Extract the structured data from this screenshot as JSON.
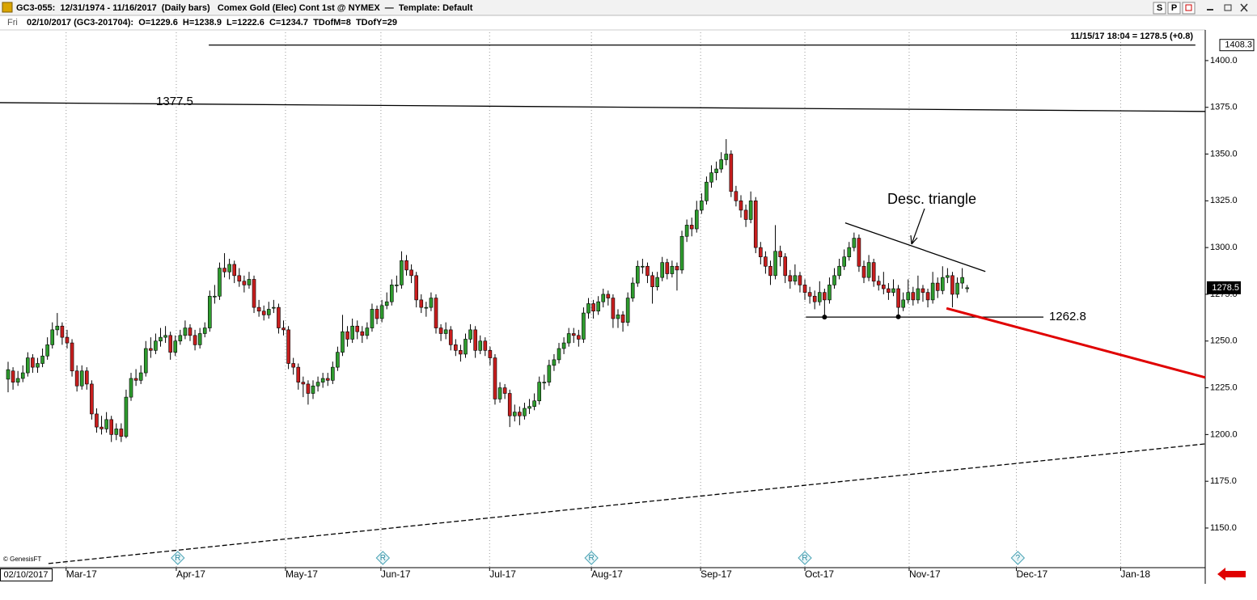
{
  "ui": {
    "header": "GC3-055:  12/31/1974 - 11/16/2017  (Daily bars)   Comex Gold (Elec) Cont 1st @ NYMEX  —  Template: Default",
    "day": "Fri",
    "info": "02/10/2017 (GC3-201704):  O=1229.6  H=1238.9  L=1222.6  C=1234.7  TDofM=8  TDofY=29",
    "last_quote": "11/15/17 18:04 = 1278.5 (+0.8)",
    "copyright": "© GenesisFT",
    "date_box": "02/10/2017",
    "buttons": [
      "S",
      "P"
    ]
  },
  "chart_data": {
    "type": "candlestick",
    "up_color": "#2e9b2e",
    "down_color": "#c81e1e",
    "grid": true,
    "xlim": [
      -1.645,
      243.4
    ],
    "ylim": [
      1128.8,
      1415.1
    ],
    "xticks": [
      {
        "value": 11.8,
        "label": "Mar-17"
      },
      {
        "value": 34.2,
        "label": "Apr-17"
      },
      {
        "value": 56.4,
        "label": "May-17"
      },
      {
        "value": 75.8,
        "label": "Jun-17"
      },
      {
        "value": 97.9,
        "label": "Jul-17"
      },
      {
        "value": 118.6,
        "label": "Aug-17"
      },
      {
        "value": 140.8,
        "label": "Sep-17"
      },
      {
        "value": 162,
        "label": "Oct-17"
      },
      {
        "value": 183.2,
        "label": "Nov-17"
      },
      {
        "value": 205,
        "label": "Dec-17"
      },
      {
        "value": 226.2,
        "label": "Jan-18"
      }
    ],
    "yticks": [
      {
        "value": 1150,
        "label": "1150.0"
      },
      {
        "value": 1175,
        "label": "1175.0"
      },
      {
        "value": 1200,
        "label": "1200.0"
      },
      {
        "value": 1225,
        "label": "1225.0"
      },
      {
        "value": 1250,
        "label": "1250.0"
      },
      {
        "value": 1275,
        "label": "1275.0"
      },
      {
        "value": 1300,
        "label": "1300.0"
      },
      {
        "value": 1325,
        "label": "1325.0"
      },
      {
        "value": 1350,
        "label": "1350.0"
      },
      {
        "value": 1375,
        "label": "1375.0"
      },
      {
        "value": 1400,
        "label": "1400.0"
      }
    ],
    "ohlc": [
      [
        1229.6,
        1238.9,
        1222.6,
        1234.7
      ],
      [
        1234,
        1236,
        1224,
        1228
      ],
      [
        1228,
        1234,
        1226,
        1230
      ],
      [
        1230,
        1237,
        1228,
        1233
      ],
      [
        1233,
        1244,
        1231,
        1241
      ],
      [
        1241,
        1243,
        1233,
        1236
      ],
      [
        1236,
        1241,
        1233,
        1238
      ],
      [
        1238,
        1246,
        1236,
        1242
      ],
      [
        1242,
        1252,
        1240,
        1248
      ],
      [
        1248,
        1260,
        1246,
        1256
      ],
      [
        1256,
        1265,
        1253,
        1258
      ],
      [
        1258,
        1260,
        1248,
        1252
      ],
      [
        1252,
        1256,
        1246,
        1249
      ],
      [
        1249,
        1251,
        1231,
        1234
      ],
      [
        1234,
        1237,
        1223,
        1226
      ],
      [
        1226,
        1237,
        1224,
        1234
      ],
      [
        1234,
        1236,
        1224,
        1227
      ],
      [
        1227,
        1229,
        1208,
        1211
      ],
      [
        1211,
        1214,
        1201,
        1204
      ],
      [
        1204,
        1210,
        1200,
        1203
      ],
      [
        1203,
        1212,
        1201,
        1208
      ],
      [
        1208,
        1210,
        1196,
        1200
      ],
      [
        1200,
        1206,
        1197,
        1203
      ],
      [
        1203,
        1206,
        1196,
        1199
      ],
      [
        1199,
        1224,
        1198,
        1220
      ],
      [
        1220,
        1233,
        1218,
        1230
      ],
      [
        1230,
        1235,
        1226,
        1229
      ],
      [
        1229,
        1237,
        1227,
        1233
      ],
      [
        1233,
        1250,
        1231,
        1246
      ],
      [
        1246,
        1252,
        1241,
        1245
      ],
      [
        1245,
        1254,
        1243,
        1250
      ],
      [
        1250,
        1257,
        1247,
        1252
      ],
      [
        1252,
        1258,
        1249,
        1253
      ],
      [
        1253,
        1255,
        1240,
        1244
      ],
      [
        1244,
        1253,
        1242,
        1250
      ],
      [
        1250,
        1256,
        1248,
        1253
      ],
      [
        1253,
        1261,
        1251,
        1257
      ],
      [
        1257,
        1259,
        1250,
        1253
      ],
      [
        1253,
        1256,
        1245,
        1248
      ],
      [
        1248,
        1257,
        1246,
        1254
      ],
      [
        1254,
        1260,
        1252,
        1257
      ],
      [
        1257,
        1277,
        1255,
        1274
      ],
      [
        1274,
        1280,
        1270,
        1274
      ],
      [
        1274,
        1292,
        1272,
        1289
      ],
      [
        1289,
        1297,
        1284,
        1287
      ],
      [
        1287,
        1294,
        1283,
        1291
      ],
      [
        1291,
        1293,
        1281,
        1285
      ],
      [
        1285,
        1289,
        1279,
        1282
      ],
      [
        1282,
        1285,
        1276,
        1280
      ],
      [
        1280,
        1287,
        1278,
        1283
      ],
      [
        1283,
        1285,
        1265,
        1268
      ],
      [
        1268,
        1272,
        1263,
        1266
      ],
      [
        1266,
        1269,
        1261,
        1264
      ],
      [
        1264,
        1271,
        1262,
        1267
      ],
      [
        1268,
        1272,
        1265,
        1268
      ],
      [
        1268,
        1270,
        1254,
        1257
      ],
      [
        1257,
        1261,
        1253,
        1256
      ],
      [
        1256,
        1258,
        1235,
        1238
      ],
      [
        1238,
        1241,
        1232,
        1236
      ],
      [
        1236,
        1238,
        1224,
        1228
      ],
      [
        1228,
        1231,
        1220,
        1227
      ],
      [
        1227,
        1229,
        1216,
        1222
      ],
      [
        1222,
        1229,
        1219,
        1226
      ],
      [
        1226,
        1231,
        1223,
        1228
      ],
      [
        1228,
        1233,
        1225,
        1230
      ],
      [
        1230,
        1233,
        1226,
        1229
      ],
      [
        1229,
        1239,
        1227,
        1236
      ],
      [
        1236,
        1247,
        1234,
        1244
      ],
      [
        1244,
        1264,
        1242,
        1255
      ],
      [
        1255,
        1258,
        1247,
        1251
      ],
      [
        1251,
        1262,
        1249,
        1258
      ],
      [
        1258,
        1261,
        1251,
        1255
      ],
      [
        1255,
        1258,
        1249,
        1253
      ],
      [
        1253,
        1260,
        1251,
        1257
      ],
      [
        1257,
        1270,
        1255,
        1267
      ],
      [
        1267,
        1269,
        1259,
        1262
      ],
      [
        1262,
        1272,
        1260,
        1269
      ],
      [
        1269,
        1276,
        1267,
        1271
      ],
      [
        1271,
        1283,
        1269,
        1280
      ],
      [
        1280,
        1285,
        1276,
        1280
      ],
      [
        1280,
        1298,
        1278,
        1293
      ],
      [
        1293,
        1296,
        1285,
        1288
      ],
      [
        1288,
        1291,
        1281,
        1285
      ],
      [
        1285,
        1287,
        1268,
        1272
      ],
      [
        1272,
        1275,
        1265,
        1268
      ],
      [
        1268,
        1271,
        1263,
        1268
      ],
      [
        1268,
        1276,
        1266,
        1273
      ],
      [
        1273,
        1275,
        1254,
        1257
      ],
      [
        1257,
        1259,
        1250,
        1254
      ],
      [
        1254,
        1260,
        1251,
        1256
      ],
      [
        1256,
        1258,
        1245,
        1248
      ],
      [
        1248,
        1251,
        1242,
        1245
      ],
      [
        1245,
        1248,
        1239,
        1243
      ],
      [
        1243,
        1254,
        1241,
        1251
      ],
      [
        1251,
        1259,
        1249,
        1256
      ],
      [
        1256,
        1258,
        1241,
        1245
      ],
      [
        1245,
        1253,
        1243,
        1250
      ],
      [
        1250,
        1252,
        1242,
        1245
      ],
      [
        1245,
        1247,
        1237,
        1241
      ],
      [
        1241,
        1243,
        1216,
        1219
      ],
      [
        1219,
        1228,
        1217,
        1225
      ],
      [
        1225,
        1227,
        1219,
        1222
      ],
      [
        1222,
        1224,
        1204,
        1210
      ],
      [
        1210,
        1216,
        1207,
        1212
      ],
      [
        1212,
        1215,
        1205,
        1210
      ],
      [
        1210,
        1217,
        1208,
        1214
      ],
      [
        1214,
        1219,
        1211,
        1215
      ],
      [
        1215,
        1222,
        1213,
        1218
      ],
      [
        1218,
        1231,
        1216,
        1228
      ],
      [
        1228,
        1232,
        1224,
        1228
      ],
      [
        1228,
        1240,
        1226,
        1237
      ],
      [
        1237,
        1243,
        1234,
        1240
      ],
      [
        1240,
        1249,
        1238,
        1246
      ],
      [
        1246,
        1252,
        1243,
        1249
      ],
      [
        1249,
        1257,
        1247,
        1254
      ],
      [
        1254,
        1257,
        1249,
        1253
      ],
      [
        1253,
        1256,
        1247,
        1251
      ],
      [
        1251,
        1268,
        1249,
        1265
      ],
      [
        1265,
        1273,
        1262,
        1270
      ],
      [
        1270,
        1272,
        1262,
        1266
      ],
      [
        1266,
        1274,
        1264,
        1271
      ],
      [
        1271,
        1278,
        1268,
        1275
      ],
      [
        1275,
        1277,
        1269,
        1273
      ],
      [
        1273,
        1275,
        1257,
        1262
      ],
      [
        1262,
        1267,
        1257,
        1264
      ],
      [
        1264,
        1266,
        1255,
        1260
      ],
      [
        1260,
        1276,
        1258,
        1273
      ],
      [
        1273,
        1284,
        1271,
        1281
      ],
      [
        1281,
        1293,
        1279,
        1290
      ],
      [
        1290,
        1294,
        1286,
        1290
      ],
      [
        1290,
        1292,
        1281,
        1285
      ],
      [
        1285,
        1287,
        1270,
        1279
      ],
      [
        1279,
        1287,
        1277,
        1284
      ],
      [
        1284,
        1295,
        1282,
        1292
      ],
      [
        1292,
        1294,
        1283,
        1286
      ],
      [
        1286,
        1293,
        1284,
        1290
      ],
      [
        1290,
        1292,
        1277,
        1288
      ],
      [
        1288,
        1309,
        1286,
        1306
      ],
      [
        1306,
        1315,
        1303,
        1312
      ],
      [
        1312,
        1316,
        1306,
        1310
      ],
      [
        1310,
        1325,
        1308,
        1320
      ],
      [
        1320,
        1329,
        1318,
        1325
      ],
      [
        1325,
        1338,
        1323,
        1335
      ],
      [
        1335,
        1344,
        1332,
        1340
      ],
      [
        1340,
        1346,
        1336,
        1342
      ],
      [
        1342,
        1351,
        1340,
        1347
      ],
      [
        1347,
        1358,
        1344,
        1350
      ],
      [
        1350,
        1352,
        1327,
        1330
      ],
      [
        1330,
        1333,
        1322,
        1325
      ],
      [
        1325,
        1328,
        1316,
        1320
      ],
      [
        1320,
        1323,
        1311,
        1315
      ],
      [
        1315,
        1330,
        1313,
        1325
      ],
      [
        1325,
        1327,
        1297,
        1300
      ],
      [
        1300,
        1303,
        1291,
        1295
      ],
      [
        1295,
        1298,
        1286,
        1290
      ],
      [
        1290,
        1293,
        1280,
        1285
      ],
      [
        1285,
        1312,
        1283,
        1298
      ],
      [
        1298,
        1301,
        1290,
        1295
      ],
      [
        1295,
        1297,
        1281,
        1285
      ],
      [
        1285,
        1288,
        1278,
        1282
      ],
      [
        1282,
        1291,
        1280,
        1285
      ],
      [
        1285,
        1287,
        1276,
        1280
      ],
      [
        1280,
        1283,
        1272,
        1276
      ],
      [
        1276,
        1279,
        1270,
        1274
      ],
      [
        1274,
        1277,
        1267,
        1271
      ],
      [
        1271,
        1282,
        1269,
        1276
      ],
      [
        1276,
        1278,
        1262.8,
        1272
      ],
      [
        1272,
        1284,
        1270,
        1280
      ],
      [
        1280,
        1289,
        1278,
        1285
      ],
      [
        1285,
        1294,
        1283,
        1290
      ],
      [
        1290,
        1299,
        1288,
        1295
      ],
      [
        1295,
        1303,
        1293,
        1300
      ],
      [
        1300,
        1308,
        1298,
        1305
      ],
      [
        1305,
        1307,
        1287,
        1290
      ],
      [
        1290,
        1293,
        1281,
        1284
      ],
      [
        1284,
        1296,
        1282,
        1292
      ],
      [
        1292,
        1294,
        1279,
        1282
      ],
      [
        1282,
        1285,
        1277,
        1280
      ],
      [
        1280,
        1287,
        1275,
        1278
      ],
      [
        1278,
        1281,
        1272,
        1276
      ],
      [
        1276,
        1283,
        1274,
        1278
      ],
      [
        1278,
        1280,
        1263,
        1268
      ],
      [
        1268,
        1276,
        1266,
        1272
      ],
      [
        1272,
        1283,
        1270,
        1276
      ],
      [
        1276,
        1279,
        1269,
        1272
      ],
      [
        1272,
        1285,
        1270,
        1278
      ],
      [
        1278,
        1280,
        1271,
        1276
      ],
      [
        1276,
        1278,
        1268,
        1272
      ],
      [
        1272,
        1287,
        1270,
        1281
      ],
      [
        1281,
        1284,
        1273,
        1277
      ],
      [
        1277,
        1290,
        1275,
        1284
      ],
      [
        1284,
        1289,
        1281,
        1285
      ],
      [
        1285,
        1287,
        1268,
        1275
      ],
      [
        1275,
        1284,
        1273,
        1281
      ],
      [
        1281,
        1289,
        1278,
        1284
      ],
      [
        1278,
        1280,
        1276,
        1278.5
      ]
    ],
    "lines": [
      {
        "x": [
          40.8,
          241.4
        ],
        "y": [
          1408.3,
          1408.3
        ],
        "color": "#000000",
        "style": "solid",
        "label": "1408.3",
        "label_position": "axis"
      },
      {
        "x": [
          -1.645,
          243.4
        ],
        "y": [
          1377.5,
          1372.8
        ],
        "color": "#000000",
        "style": "solid",
        "label": "1377.5",
        "label_position": "left"
      },
      {
        "x": [
          8.2,
          243.4
        ],
        "y": [
          1131,
          1195
        ],
        "color": "#000000",
        "style": "dashed"
      },
      {
        "x": [
          170.2,
          198.7
        ],
        "y": [
          1313.2,
          1287.2
        ],
        "color": "#000000",
        "style": "solid"
      },
      {
        "x": [
          162.2,
          210.5
        ],
        "y": [
          1262.8,
          1262.8
        ],
        "color": "#000000",
        "style": "solid",
        "label": "1262.8",
        "label_position": "right"
      },
      {
        "x": [
          190.8,
          243.4
        ],
        "y": [
          1267.5,
          1230.5
        ],
        "color": "#e00000",
        "style": "thick"
      }
    ],
    "points": [
      {
        "x": 166,
        "y": 1262.8
      },
      {
        "x": 181,
        "y": 1263
      }
    ],
    "events": [
      {
        "x": 34.5,
        "label": "R"
      },
      {
        "x": 76.2,
        "label": "R"
      },
      {
        "x": 118.6,
        "label": "R"
      },
      {
        "x": 162,
        "label": "R"
      },
      {
        "x": 205.3,
        "label": "?"
      }
    ],
    "annotation": "Desc. triangle"
  }
}
